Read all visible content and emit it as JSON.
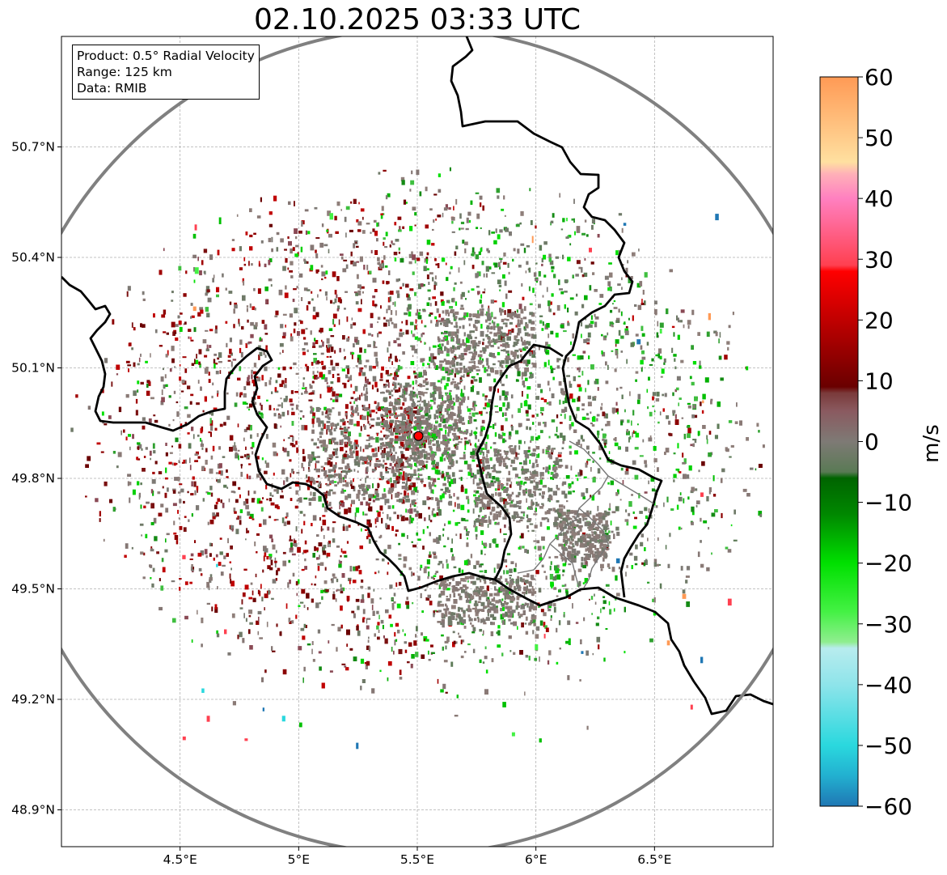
{
  "chart_data": {
    "type": "heatmap",
    "title": "02.10.2025 03:33 UTC",
    "info_box": {
      "product": "Product: 0.5° Radial Velocity",
      "range": "Range: 125 km",
      "source": "Data: RMIB"
    },
    "x_axis": {
      "label": "",
      "unit": "longitude",
      "ticks": [
        4.5,
        5.0,
        5.5,
        6.0,
        6.5
      ],
      "tick_labels": [
        "4.5°E",
        "5°E",
        "5.5°E",
        "6°E",
        "6.5°E"
      ],
      "range": [
        4.0,
        7.0
      ]
    },
    "y_axis": {
      "label": "",
      "unit": "latitude",
      "ticks": [
        48.9,
        49.2,
        49.5,
        49.8,
        50.1,
        50.4,
        50.7
      ],
      "tick_labels": [
        "48.9°N",
        "49.2°N",
        "49.5°N",
        "49.8°N",
        "50.1°N",
        "50.4°N",
        "50.7°N"
      ],
      "range": [
        48.8,
        51.0
      ]
    },
    "grid": true,
    "radar": {
      "lon": 5.505,
      "lat": 49.915,
      "range_ring_km": 125,
      "ring_color": "#808080",
      "marker_color": "#ff0000"
    },
    "colorbar": {
      "label": "m/s",
      "min": -60,
      "max": 60,
      "ticks": [
        60,
        50,
        40,
        30,
        20,
        10,
        0,
        -10,
        -20,
        -30,
        -40,
        -50,
        -60
      ],
      "tick_labels": [
        "60",
        "50",
        "40",
        "30",
        "20",
        "10",
        "0",
        "−10",
        "−20",
        "−30",
        "−40",
        "−50",
        "−60"
      ],
      "stops": [
        {
          "v": -60,
          "c": "#1f77b4"
        },
        {
          "v": -55,
          "c": "#22b0d0"
        },
        {
          "v": -50,
          "c": "#2ad8de"
        },
        {
          "v": -40,
          "c": "#8ee4ea"
        },
        {
          "v": -34,
          "c": "#b8ecee"
        },
        {
          "v": -33,
          "c": "#90ee90"
        },
        {
          "v": -28,
          "c": "#44f144"
        },
        {
          "v": -20,
          "c": "#00e000"
        },
        {
          "v": -12,
          "c": "#008800"
        },
        {
          "v": -6,
          "c": "#006400"
        },
        {
          "v": -5,
          "c": "#5a7a55"
        },
        {
          "v": 0,
          "c": "#7e7a75"
        },
        {
          "v": 5,
          "c": "#8a5a60"
        },
        {
          "v": 8,
          "c": "#7a3a3a"
        },
        {
          "v": 9,
          "c": "#6a0000"
        },
        {
          "v": 20,
          "c": "#c00000"
        },
        {
          "v": 28,
          "c": "#ff0000"
        },
        {
          "v": 29,
          "c": "#ff4050"
        },
        {
          "v": 40,
          "c": "#ff80c0"
        },
        {
          "v": 44,
          "c": "#ffb0b8"
        },
        {
          "v": 46,
          "c": "#ffe0a0"
        },
        {
          "v": 60,
          "c": "#ff9a55"
        }
      ]
    },
    "velocity_field_summary": {
      "inbound_color": "#00c000",
      "outbound_color": "#a00000",
      "near_zero_color": "#8a7a76",
      "extent_km": 90
    }
  }
}
